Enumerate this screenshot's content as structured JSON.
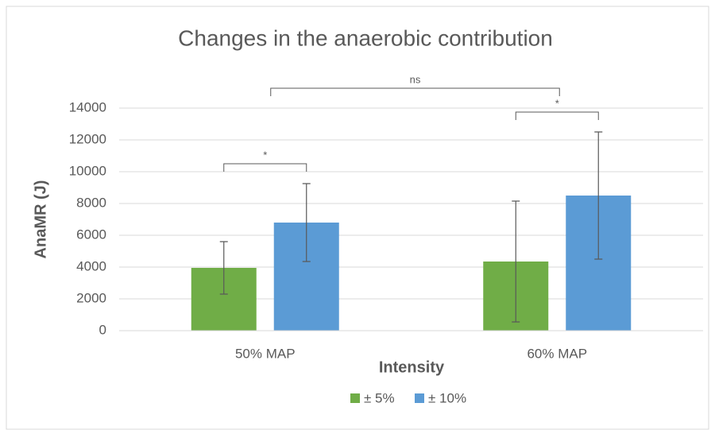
{
  "chart_data": {
    "type": "bar",
    "title": "Changes in the anaerobic contribution",
    "x_label": "Intensity",
    "y_label": "AnaMR (J)",
    "categories": [
      "50% MAP",
      "60% MAP"
    ],
    "series": [
      {
        "name": "± 5%",
        "color": "#70ad47",
        "values": [
          3950,
          4350
        ],
        "errors": [
          1650,
          3800
        ]
      },
      {
        "name": "± 10%",
        "color": "#5b9bd5",
        "values": [
          6800,
          8500
        ],
        "errors": [
          2450,
          4000
        ]
      }
    ],
    "annotations": [
      {
        "text": "*"
      },
      {
        "text": "*"
      },
      {
        "text": "ns"
      }
    ],
    "ylim": [
      0,
      14000
    ],
    "yticks": [
      0,
      2000,
      4000,
      6000,
      8000,
      10000,
      12000,
      14000
    ],
    "grid": true,
    "legend": "bottom"
  }
}
